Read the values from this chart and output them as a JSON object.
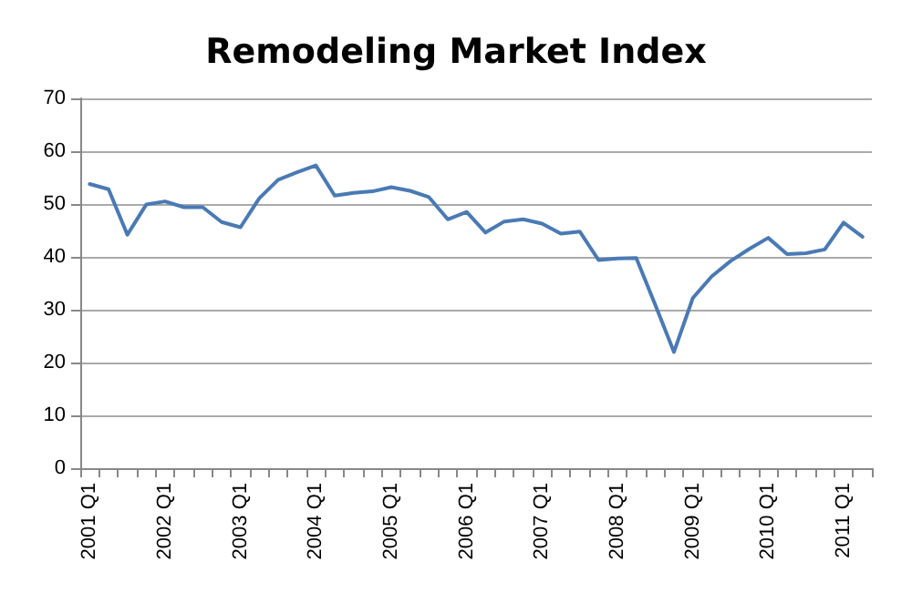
{
  "chart_data": {
    "type": "line",
    "title": "Remodeling Market Index",
    "categories": [
      "2001 Q1",
      null,
      null,
      null,
      "2002 Q1",
      null,
      null,
      null,
      "2003 Q1",
      null,
      null,
      null,
      "2004 Q1",
      null,
      null,
      null,
      "2005 Q1",
      null,
      null,
      null,
      "2006 Q1",
      null,
      null,
      null,
      "2007 Q1",
      null,
      null,
      null,
      "2008 Q1",
      null,
      null,
      null,
      "2009 Q1",
      null,
      null,
      null,
      "2010 Q1",
      null,
      null,
      null,
      "2011 Q1",
      null
    ],
    "series": [
      {
        "color": "#4a7ab5",
        "values": [
          53.8,
          52.8,
          44.2,
          49.9,
          50.5,
          49.4,
          49.4,
          46.6,
          45.6,
          51.1,
          54.6,
          56,
          57.3,
          51.6,
          52.1,
          52.4,
          53.2,
          52.5,
          51.3,
          47.1,
          48.5,
          44.6,
          46.7,
          47.1,
          46.3,
          44.4,
          44.8,
          39.4,
          39.7,
          39.8,
          31,
          22,
          32.2,
          36.3,
          39.2,
          41.5,
          43.6,
          40.5,
          40.7,
          41.4,
          46.5,
          43.8
        ]
      }
    ],
    "ylim": [
      0,
      70
    ],
    "yticks": [
      0,
      10,
      20,
      30,
      40,
      50,
      60,
      70
    ],
    "grid": "y",
    "marker": "none",
    "line_style": "solid"
  }
}
